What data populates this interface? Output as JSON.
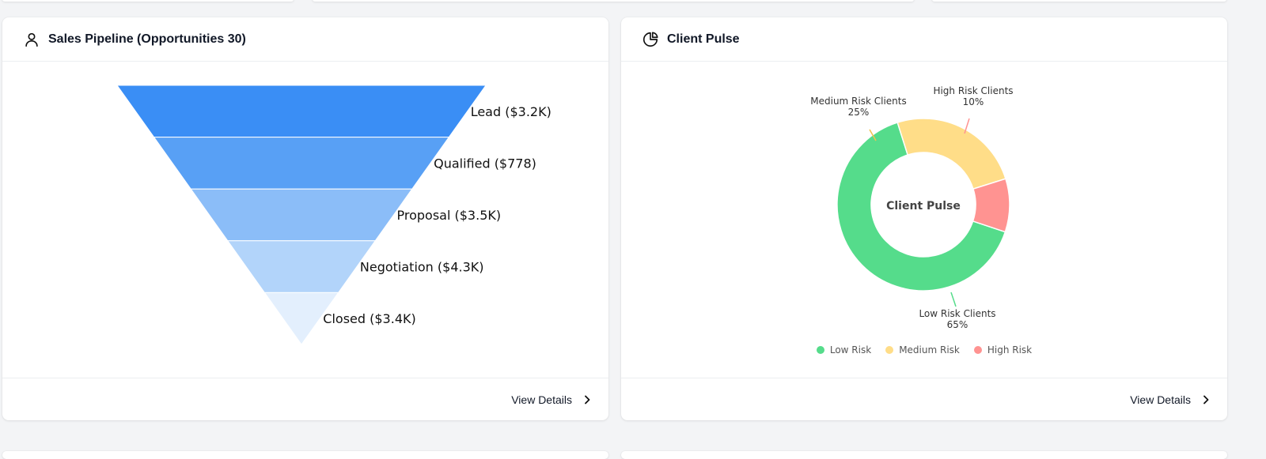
{
  "cards": {
    "pipeline": {
      "title": "Sales Pipeline (Opportunities 30)",
      "view_details": "View Details"
    },
    "pulse": {
      "title": "Client Pulse",
      "view_details": "View Details",
      "center_label": "Client Pulse"
    }
  },
  "icons": {
    "pipeline_header": "user-icon",
    "pulse_header": "pie-chart-icon",
    "view_details": "chevron-right-icon"
  },
  "chart_data": [
    {
      "type": "funnel",
      "categories": [
        "Lead",
        "Qualified",
        "Proposal",
        "Negotiation",
        "Closed"
      ],
      "labels": [
        "Lead ($3.2K)",
        "Qualified ($778)",
        "Proposal ($3.5K)",
        "Negotiation ($4.3K)",
        "Closed ($3.4K)"
      ],
      "value_text": [
        "$3.2K",
        "$778",
        "$3.5K",
        "$4.3K",
        "$3.4K"
      ],
      "colors": [
        "#3a8ef5",
        "#58a0f5",
        "#8bbdf8",
        "#b2d4fa",
        "#e3effd"
      ]
    },
    {
      "type": "pie",
      "donut": true,
      "title": "Client Pulse",
      "slices": [
        {
          "name": "Low Risk Clients",
          "value": 65,
          "pct_text": "65%",
          "legend": "Low Risk",
          "color": "#55dc8b"
        },
        {
          "name": "Medium Risk Clients",
          "value": 25,
          "pct_text": "25%",
          "legend": "Medium Risk",
          "color": "#ffdd88"
        },
        {
          "name": "High Risk Clients",
          "value": 10,
          "pct_text": "10%",
          "legend": "High Risk",
          "color": "#ff9391"
        }
      ],
      "legend_position": "bottom"
    }
  ]
}
